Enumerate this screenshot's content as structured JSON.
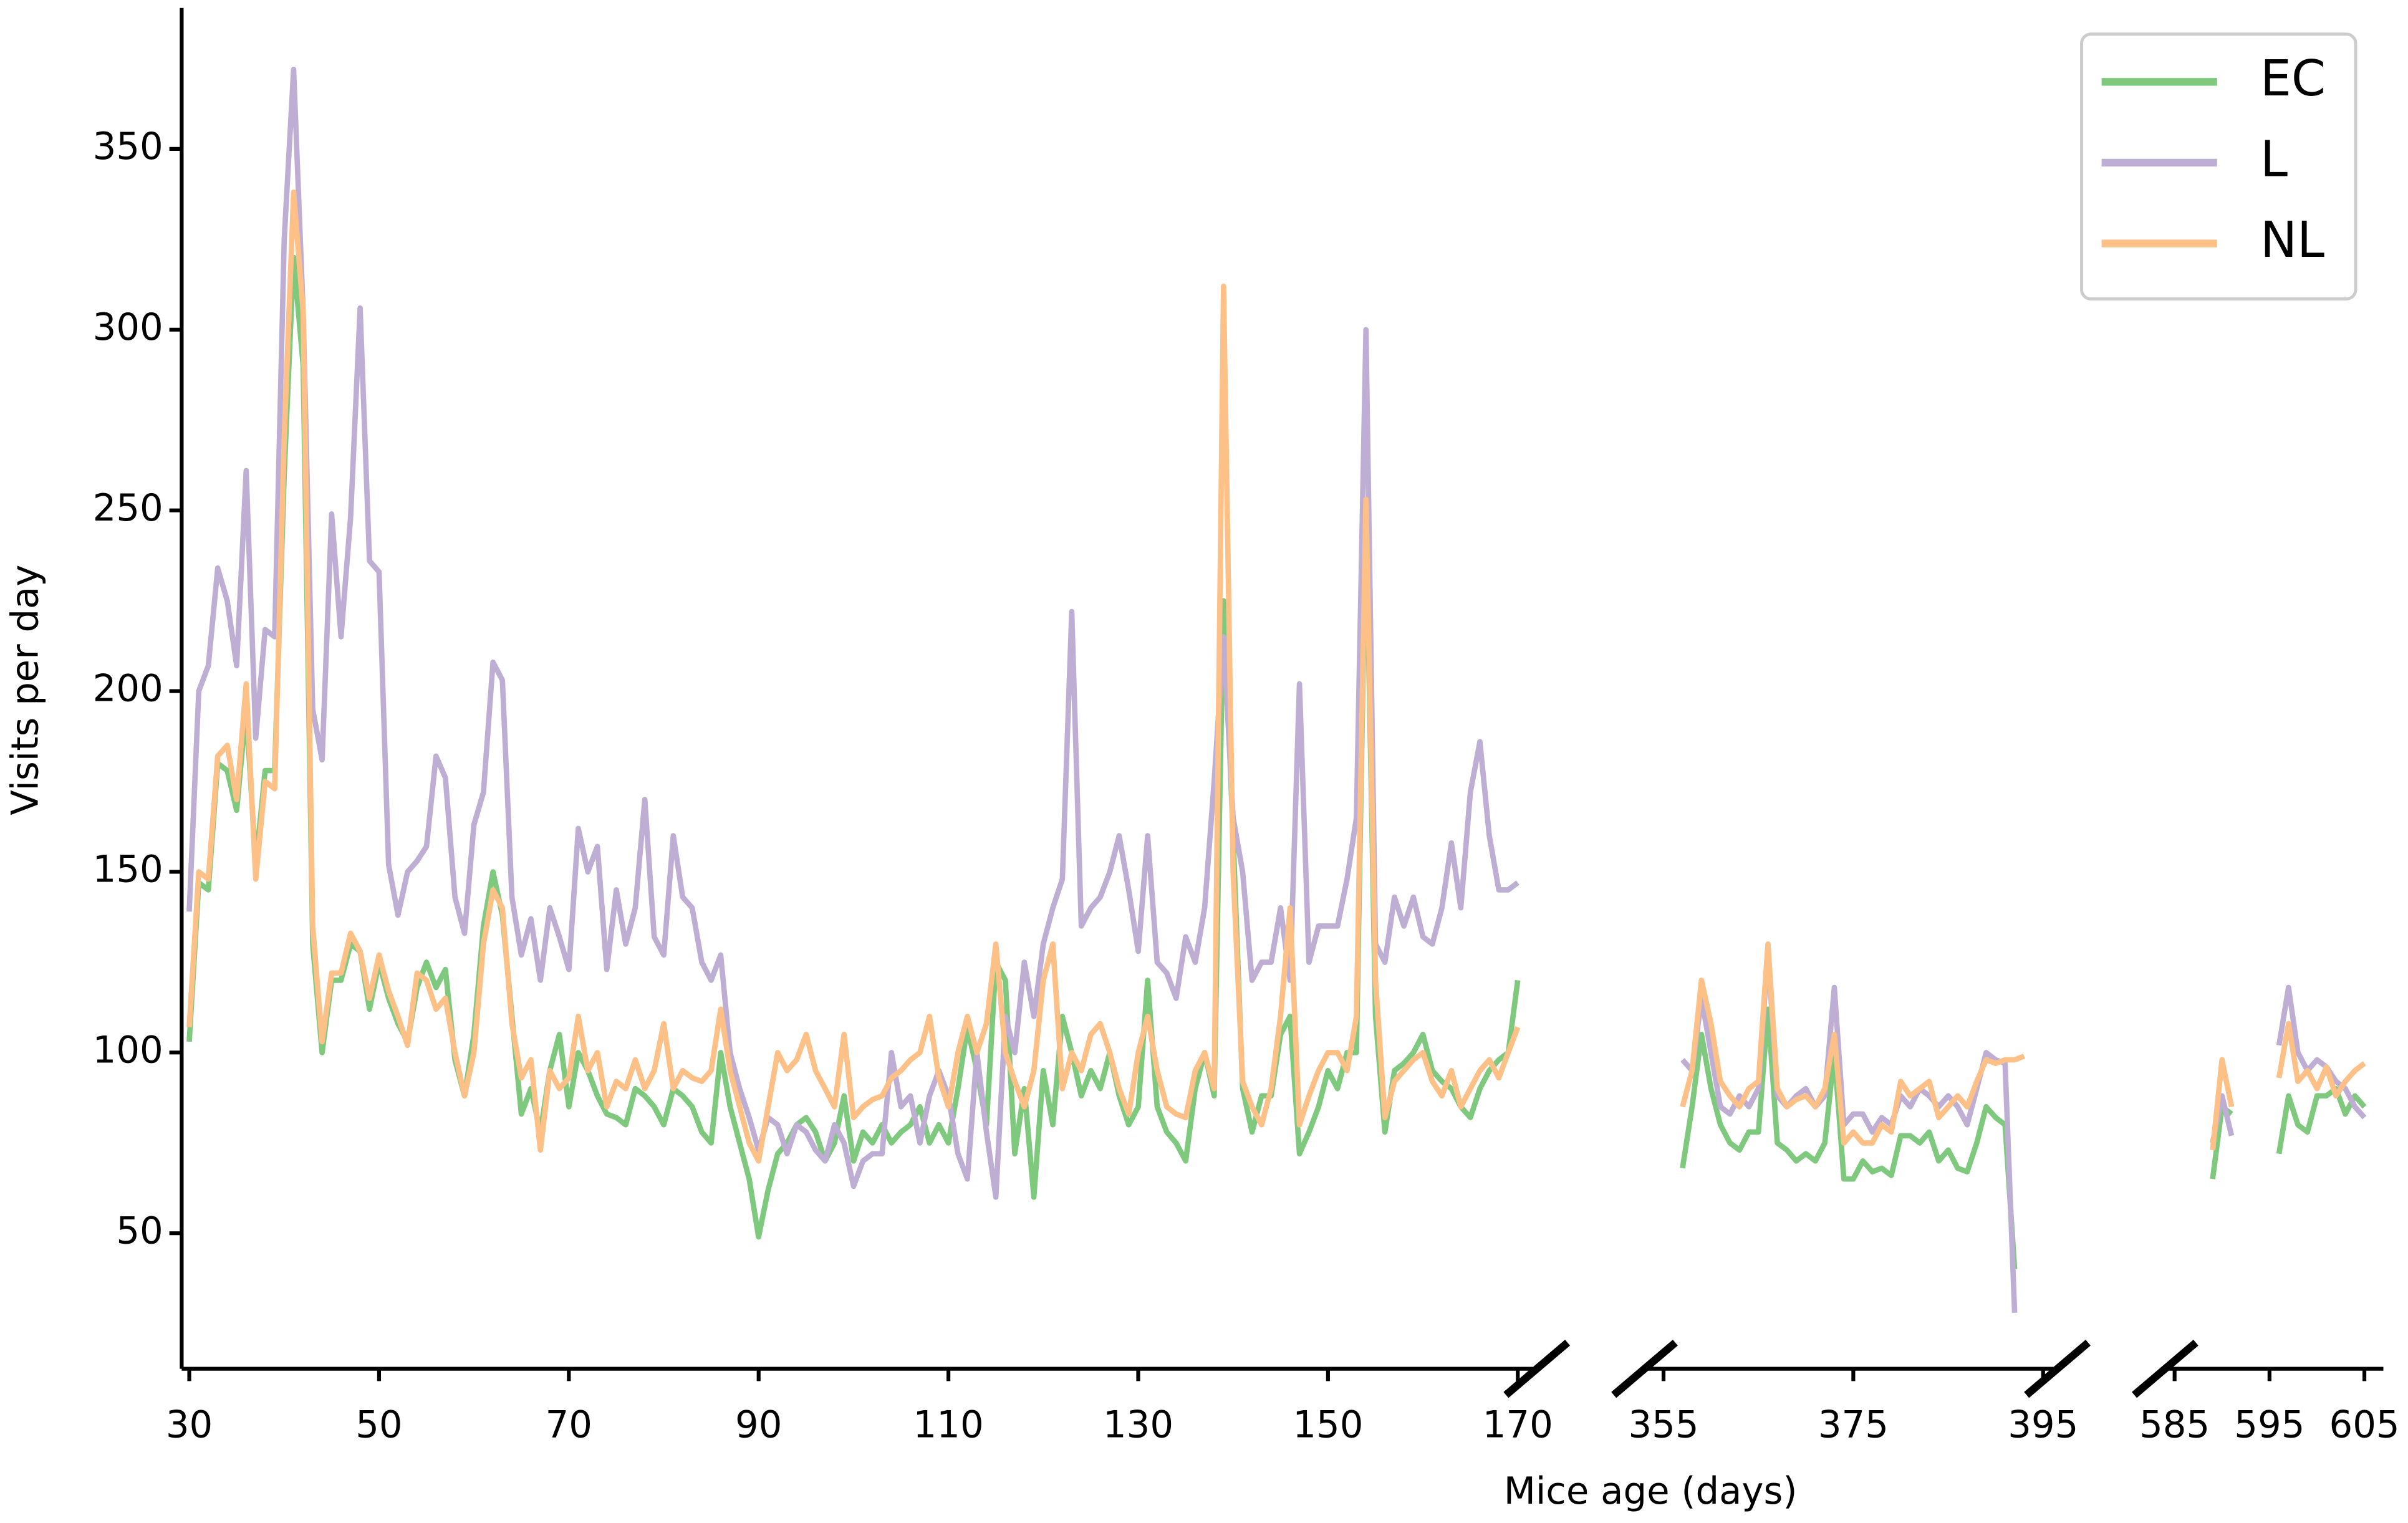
{
  "chart_data": {
    "type": "line",
    "xlabel": "Mice age (days)",
    "ylabel": "Visits per day",
    "ylim": [
      12.5,
      389
    ],
    "yticks": [
      50,
      100,
      150,
      200,
      250,
      300,
      350
    ],
    "x_segments": [
      {
        "xlim": [
          29.2,
          172
        ],
        "xticks": [
          30,
          50,
          70,
          90,
          110,
          130,
          150,
          170
        ]
      },
      {
        "xlim": [
          353,
          396.5
        ],
        "xticks": [
          355,
          375,
          395
        ]
      },
      {
        "xlim": [
          584,
          607
        ],
        "xticks": [
          585,
          595,
          605
        ]
      }
    ],
    "legend": "upper right",
    "x": [
      30,
      31,
      32,
      33,
      34,
      35,
      36,
      37,
      38,
      39,
      40,
      41,
      42,
      43,
      44,
      45,
      46,
      47,
      48,
      49,
      50,
      51,
      52,
      53,
      54,
      55,
      56,
      57,
      58,
      59,
      60,
      61,
      62,
      63,
      64,
      65,
      66,
      67,
      68,
      69,
      70,
      71,
      72,
      73,
      74,
      75,
      76,
      77,
      78,
      79,
      80,
      81,
      82,
      83,
      84,
      85,
      86,
      87,
      88,
      89,
      90,
      91,
      92,
      93,
      94,
      95,
      96,
      97,
      98,
      99,
      100,
      101,
      102,
      103,
      104,
      105,
      106,
      107,
      108,
      109,
      110,
      111,
      112,
      113,
      114,
      115,
      116,
      117,
      118,
      119,
      120,
      121,
      122,
      123,
      124,
      125,
      126,
      127,
      128,
      129,
      130,
      131,
      132,
      133,
      134,
      135,
      136,
      137,
      138,
      139,
      140,
      141,
      142,
      143,
      144,
      145,
      146,
      147,
      148,
      149,
      150,
      151,
      152,
      153,
      154,
      155,
      156,
      157,
      158,
      159,
      160,
      161,
      162,
      163,
      164,
      165,
      166,
      167,
      168,
      169,
      170,
      357,
      358,
      359,
      360,
      361,
      362,
      363,
      364,
      365,
      366,
      367,
      368,
      369,
      370,
      371,
      372,
      373,
      374,
      375,
      376,
      377,
      378,
      379,
      380,
      381,
      382,
      383,
      384,
      385,
      386,
      387,
      388,
      389,
      390,
      391,
      392,
      393,
      589,
      590,
      591,
      592,
      593,
      594,
      595,
      596,
      597,
      598,
      599,
      600,
      601,
      602,
      603,
      604,
      605
    ],
    "series": [
      {
        "name": "EC",
        "color": "#7fc97f",
        "values": [
          103,
          147,
          145,
          180,
          178,
          167,
          195,
          152,
          178,
          178,
          260,
          320,
          290,
          130,
          100,
          120,
          120,
          130,
          128,
          112,
          125,
          115,
          108,
          103,
          118,
          125,
          118,
          123,
          98,
          88,
          105,
          135,
          150,
          138,
          110,
          83,
          90,
          78,
          95,
          105,
          85,
          100,
          95,
          88,
          83,
          82,
          80,
          90,
          88,
          85,
          80,
          90,
          88,
          85,
          78,
          75,
          100,
          85,
          75,
          65,
          49,
          62,
          72,
          75,
          80,
          82,
          78,
          70,
          75,
          88,
          70,
          78,
          75,
          80,
          75,
          78,
          80,
          85,
          75,
          80,
          75,
          90,
          107,
          95,
          80,
          125,
          120,
          72,
          90,
          60,
          95,
          80,
          110,
          100,
          88,
          95,
          90,
          100,
          88,
          80,
          85,
          120,
          85,
          78,
          75,
          70,
          90,
          100,
          88,
          225,
          160,
          90,
          78,
          88,
          88,
          105,
          110,
          72,
          78,
          85,
          95,
          90,
          100,
          100,
          250,
          110,
          78,
          95,
          97,
          100,
          105,
          95,
          92,
          90,
          85,
          82,
          90,
          95,
          98,
          100,
          120,
          68,
          85,
          105,
          90,
          80,
          75,
          73,
          78,
          78,
          112,
          75,
          73,
          70,
          72,
          70,
          75,
          100,
          65,
          65,
          70,
          67,
          68,
          66,
          77,
          77,
          75,
          78,
          70,
          73,
          68,
          67,
          75,
          85,
          82,
          80,
          40,
          null,
          65,
          85,
          83,
          null,
          null,
          null,
          null,
          72,
          88,
          80,
          78,
          88,
          88,
          90,
          83,
          88,
          85
        ]
      },
      {
        "name": "L",
        "color": "#beaed4",
        "values": [
          139,
          200,
          207,
          234,
          225,
          207,
          261,
          187,
          217,
          215,
          325,
          372,
          305,
          195,
          181,
          249,
          215,
          248,
          306,
          236,
          233,
          152,
          138,
          150,
          153,
          157,
          182,
          176,
          143,
          133,
          163,
          172,
          208,
          203,
          143,
          127,
          137,
          120,
          140,
          132,
          123,
          162,
          150,
          157,
          123,
          145,
          130,
          140,
          170,
          132,
          127,
          160,
          143,
          140,
          125,
          120,
          127,
          100,
          90,
          82,
          73,
          82,
          80,
          72,
          80,
          78,
          73,
          70,
          80,
          75,
          63,
          70,
          72,
          72,
          100,
          85,
          88,
          75,
          88,
          95,
          88,
          72,
          65,
          100,
          78,
          60,
          110,
          100,
          125,
          110,
          130,
          140,
          148,
          222,
          135,
          140,
          143,
          150,
          160,
          145,
          128,
          160,
          125,
          122,
          115,
          132,
          125,
          140,
          175,
          215,
          165,
          150,
          120,
          125,
          125,
          140,
          120,
          202,
          125,
          135,
          135,
          135,
          148,
          165,
          300,
          130,
          125,
          143,
          135,
          143,
          132,
          130,
          140,
          158,
          140,
          172,
          186,
          160,
          145,
          145,
          147,
          98,
          95,
          115,
          100,
          85,
          83,
          88,
          85,
          90,
          128,
          88,
          85,
          88,
          90,
          85,
          88,
          118,
          80,
          83,
          83,
          78,
          82,
          80,
          88,
          85,
          90,
          88,
          85,
          88,
          85,
          80,
          90,
          100,
          98,
          97,
          28,
          null,
          75,
          88,
          77,
          null,
          null,
          null,
          null,
          102,
          118,
          100,
          95,
          98,
          96,
          92,
          90,
          85,
          82
        ]
      },
      {
        "name": "NL",
        "color": "#fdc086",
        "values": [
          107,
          150,
          148,
          182,
          185,
          170,
          202,
          148,
          175,
          173,
          270,
          338,
          305,
          135,
          103,
          122,
          122,
          133,
          128,
          115,
          127,
          117,
          110,
          102,
          122,
          120,
          112,
          115,
          100,
          88,
          100,
          130,
          145,
          140,
          108,
          93,
          98,
          73,
          95,
          90,
          93,
          110,
          95,
          100,
          85,
          92,
          90,
          98,
          90,
          95,
          108,
          90,
          95,
          93,
          92,
          95,
          112,
          95,
          85,
          75,
          70,
          85,
          100,
          95,
          98,
          105,
          95,
          90,
          85,
          105,
          82,
          85,
          87,
          88,
          93,
          95,
          98,
          100,
          110,
          93,
          85,
          100,
          110,
          100,
          108,
          130,
          100,
          92,
          85,
          95,
          120,
          130,
          90,
          100,
          95,
          105,
          108,
          100,
          90,
          83,
          100,
          110,
          95,
          85,
          83,
          82,
          95,
          100,
          90,
          312,
          150,
          92,
          85,
          80,
          90,
          110,
          140,
          80,
          88,
          95,
          100,
          100,
          95,
          110,
          253,
          120,
          82,
          92,
          95,
          98,
          100,
          92,
          88,
          95,
          85,
          90,
          95,
          98,
          93,
          100,
          107,
          85,
          95,
          120,
          108,
          92,
          88,
          85,
          90,
          92,
          130,
          90,
          85,
          87,
          88,
          85,
          90,
          105,
          75,
          78,
          75,
          75,
          80,
          78,
          92,
          88,
          90,
          92,
          82,
          85,
          88,
          85,
          92,
          98,
          97,
          98,
          98,
          99,
          73,
          98,
          85,
          null,
          null,
          null,
          null,
          93,
          108,
          92,
          95,
          90,
          96,
          88,
          92,
          95,
          97
        ]
      }
    ]
  }
}
